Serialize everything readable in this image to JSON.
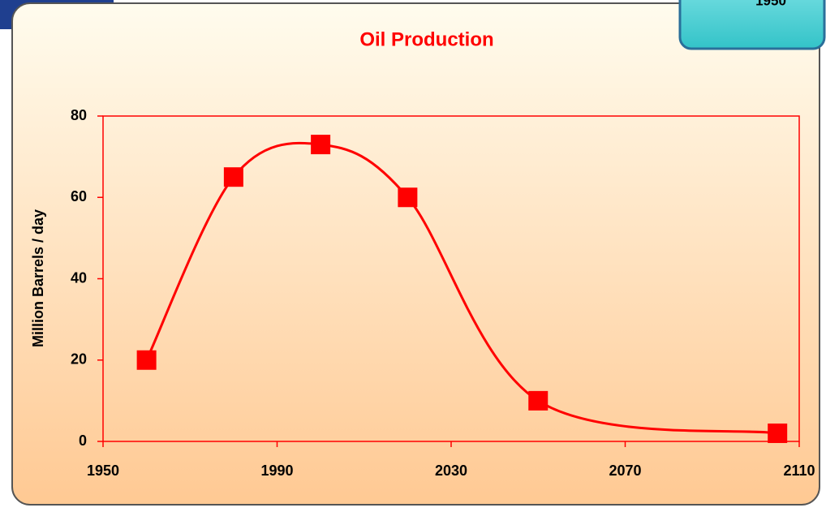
{
  "chart_data": {
    "type": "line",
    "title": "Oil Production",
    "corner_label": "1950",
    "ylabel": "Million Barrels / day",
    "x": [
      1960,
      1980,
      2000,
      2020,
      2050,
      2105
    ],
    "series": [
      {
        "name": "Oil Production",
        "color": "#ff0000",
        "values": [
          20,
          65,
          73,
          60,
          10,
          2
        ]
      }
    ],
    "xlim": [
      1950,
      2110
    ],
    "xticks": [
      1950,
      1990,
      2030,
      2070,
      2110
    ],
    "ylim": [
      0,
      80
    ],
    "yticks": [
      0,
      20,
      40,
      60,
      80
    ],
    "grid": false,
    "legend": false
  }
}
